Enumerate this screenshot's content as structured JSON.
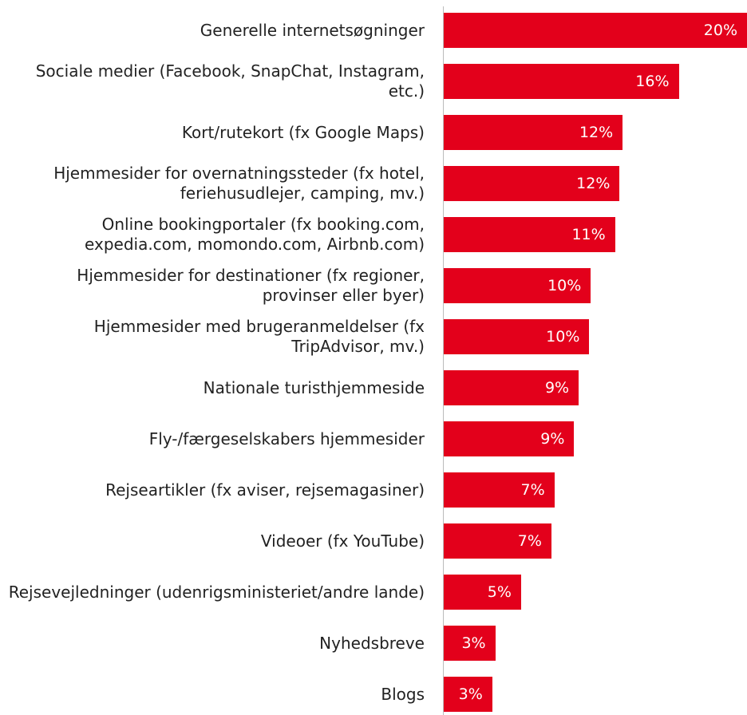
{
  "chart_data": {
    "type": "bar",
    "orientation": "horizontal",
    "categories": [
      "Generelle internetsøgninger",
      "Sociale medier (Facebook, SnapChat, Instagram, etc.)",
      "Kort/rutekort (fx Google Maps)",
      "Hjemmesider for overnatningssteder (fx hotel, feriehusudlejer, camping, mv.)",
      "Online bookingportaler (fx booking.com, expedia.com, momondo.com, Airbnb.com)",
      "Hjemmesider for destinationer (fx regioner, provinser eller byer)",
      "Hjemmesider med brugeranmeldelser (fx TripAdvisor, mv.)",
      "Nationale turisthjemmeside",
      "Fly-/færgeselskabers hjemmesider",
      "Rejseartikler (fx aviser, rejsemagasiner)",
      "Videoer (fx YouTube)",
      "Rejsevejledninger (udenrigsministeriet/andre lande)",
      "Nyhedsbreve",
      "Blogs"
    ],
    "values": [
      20,
      15.5,
      11.8,
      11.6,
      11.3,
      9.7,
      9.6,
      8.9,
      8.6,
      7.3,
      7.1,
      5.1,
      3.4,
      3.2
    ],
    "value_labels": [
      "20%",
      "16%",
      "12%",
      "12%",
      "11%",
      "10%",
      "10%",
      "9%",
      "9%",
      "7%",
      "7%",
      "5%",
      "3%",
      "3%"
    ],
    "color": "#e3001b",
    "xlim": [
      0,
      20
    ]
  }
}
